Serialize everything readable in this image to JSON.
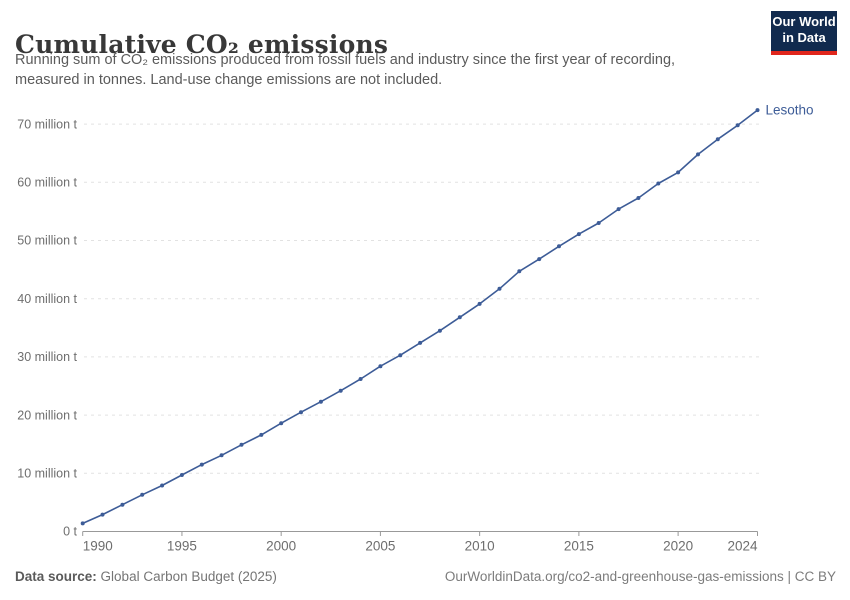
{
  "header": {
    "title": "Cumulative CO₂ emissions",
    "subtitle_lines": [
      "Running sum of CO₂ emissions produced from fossil fuels and industry since the first year of recording,",
      "measured in tonnes. Land-use change emissions are not included."
    ],
    "logo": {
      "line1": "Our World",
      "line2": "in Data"
    }
  },
  "footer": {
    "source_label": "Data source:",
    "source_value": "Global Carbon Budget (2025)",
    "right_text": "OurWorldinData.org/co2-and-greenhouse-gas-emissions | CC BY"
  },
  "colors": {
    "line": "#3d5c97",
    "entity_label": "#3d5c97",
    "grid": "#e2e2e2",
    "axis": "#999999",
    "tick_label": "#6e6e6e",
    "logo_bg": "#112a4e",
    "logo_red": "#e0261c"
  },
  "chart_data": {
    "type": "line",
    "title": "Cumulative CO₂ emissions",
    "entity": "Lesotho",
    "ylabel": "",
    "xlabel": "",
    "unit": "million tonnes",
    "grid": "horizontal-dashed",
    "legend_position": "line-end-label",
    "xlim": [
      1990,
      2024
    ],
    "ylim": [
      0,
      70
    ],
    "x": [
      1990,
      1991,
      1992,
      1993,
      1994,
      1995,
      1996,
      1997,
      1998,
      1999,
      2000,
      2001,
      2002,
      2003,
      2004,
      2005,
      2006,
      2007,
      2008,
      2009,
      2010,
      2011,
      2012,
      2013,
      2014,
      2015,
      2016,
      2017,
      2018,
      2019,
      2020,
      2021,
      2022,
      2023,
      2024
    ],
    "values": [
      1.4,
      2.9,
      4.6,
      6.3,
      7.9,
      9.7,
      11.5,
      13.1,
      14.9,
      16.6,
      18.6,
      20.5,
      22.3,
      24.2,
      26.2,
      28.4,
      30.3,
      32.4,
      34.5,
      36.8,
      39.1,
      41.7,
      44.7,
      46.8,
      49.0,
      51.1,
      53.0,
      55.4,
      57.3,
      59.8,
      61.7,
      64.8,
      67.4,
      69.8,
      72.4
    ],
    "xticks": [
      1990,
      1995,
      2000,
      2005,
      2010,
      2015,
      2020,
      2024
    ],
    "yticks": [
      {
        "value": 0,
        "label": "0 t"
      },
      {
        "value": 10,
        "label": "10 million t"
      },
      {
        "value": 20,
        "label": "20 million t"
      },
      {
        "value": 30,
        "label": "30 million t"
      },
      {
        "value": 40,
        "label": "40 million t"
      },
      {
        "value": 50,
        "label": "50 million t"
      },
      {
        "value": 60,
        "label": "60 million t"
      },
      {
        "value": 70,
        "label": "70 million t"
      }
    ]
  }
}
